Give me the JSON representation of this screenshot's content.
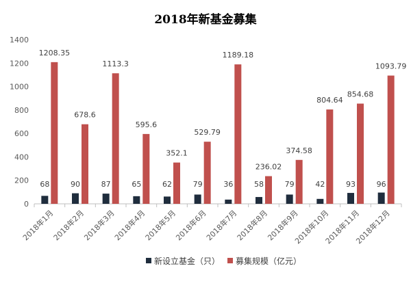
{
  "chart_data": {
    "type": "bar",
    "title": "2018年新基金募集",
    "categories": [
      "2018年1月",
      "2018年2月",
      "2018年3月",
      "2018年4月",
      "2018年5月",
      "2018年6月",
      "2018年7月",
      "2018年8月",
      "2018年9月",
      "2018年10月",
      "2018年11月",
      "2018年12月"
    ],
    "series": [
      {
        "name": "新设立基金（只）",
        "color": "#1f2d3d",
        "values": [
          68,
          90,
          87,
          65,
          62,
          79,
          36,
          58,
          79,
          42,
          93,
          96
        ],
        "labels": [
          "68",
          "90",
          "87",
          "65",
          "62",
          "79",
          "36",
          "58",
          "79",
          "42",
          "93",
          "96"
        ]
      },
      {
        "name": "募集规模（亿元）",
        "color": "#c0504d",
        "values": [
          1208.35,
          678.6,
          1113.3,
          595.6,
          352.1,
          529.79,
          1189.18,
          236.02,
          374.58,
          804.64,
          854.68,
          1093.79
        ],
        "labels": [
          "1208.35",
          "678.6",
          "1113.3",
          "595.6",
          "352.1",
          "529.79",
          "1189.18",
          "236.02",
          "374.58",
          "804.64",
          "854.68",
          "1093.79"
        ]
      }
    ],
    "ylim": [
      0,
      1400
    ],
    "yticks": [
      "0",
      "200",
      "400",
      "600",
      "800",
      "1000",
      "1200",
      "1400"
    ],
    "grid": false,
    "legend_position": "bottom"
  }
}
